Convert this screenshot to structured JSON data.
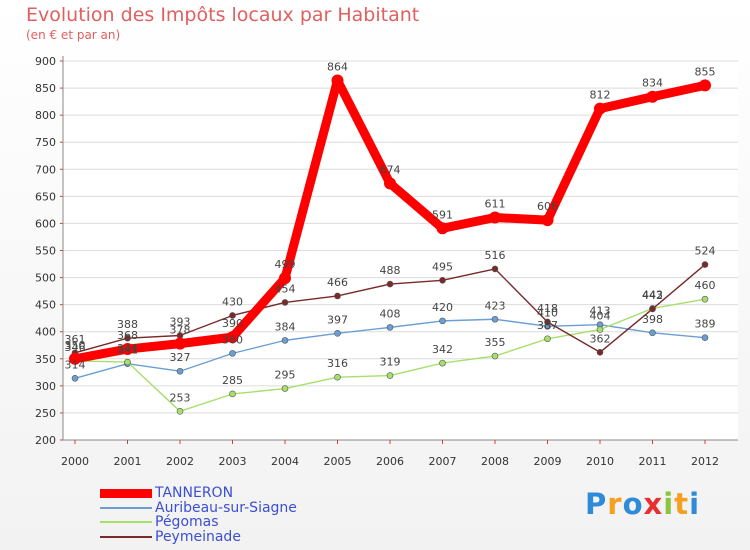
{
  "chart_data": {
    "type": "line",
    "title": "Evolution des Impôts locaux par Habitant",
    "subtitle": "(en € et par an)",
    "x": [
      "2000",
      "2001",
      "2002",
      "2003",
      "2004",
      "2005",
      "2006",
      "2007",
      "2008",
      "2009",
      "2010",
      "2011",
      "2012"
    ],
    "yticks": [
      "200",
      "250",
      "300",
      "350",
      "400",
      "450",
      "500",
      "550",
      "600",
      "650",
      "700",
      "750",
      "800",
      "850",
      "900"
    ],
    "ylim": [
      200,
      900
    ],
    "grid": "horizontal",
    "legend_position": "bottom-left",
    "series": [
      {
        "name": "TANNERON",
        "color": "#ff0000",
        "values": [
          350,
          368,
          378,
          390,
          499,
          864,
          674,
          591,
          611,
          606,
          812,
          834,
          855
        ],
        "labels": [
          "350",
          "368",
          "378",
          "390",
          "499",
          "864",
          "674",
          "591",
          "611",
          "606",
          "812",
          "834",
          "855"
        ]
      },
      {
        "name": "Auribeau-sur-Siagne",
        "color": "#6b9fd4",
        "values": [
          314,
          341,
          327,
          360,
          384,
          397,
          408,
          420,
          423,
          410,
          413,
          398,
          389
        ],
        "labels": [
          "314",
          "341",
          "327",
          "360",
          "384",
          "397",
          "408",
          "420",
          "423",
          "410",
          "413",
          "398",
          "389"
        ]
      },
      {
        "name": "Pégomas",
        "color": "#a6e06b",
        "values": [
          346,
          344,
          253,
          285,
          295,
          316,
          319,
          342,
          355,
          387,
          404,
          443,
          460
        ],
        "labels": [
          "346",
          "344",
          "253",
          "285",
          "295",
          "316",
          "319",
          "342",
          "355",
          "387",
          "404",
          "443",
          "460"
        ]
      },
      {
        "name": "Peymeinade",
        "color": "#7a2a2a",
        "values": [
          361,
          388,
          393,
          430,
          454,
          466,
          488,
          495,
          516,
          418,
          362,
          442,
          524
        ],
        "labels": [
          "361",
          "388",
          "393",
          "430",
          "454",
          "466",
          "488",
          "495",
          "516",
          "418",
          "362",
          "442",
          "524"
        ]
      }
    ]
  },
  "logo": {
    "text": "Proxiti",
    "letters": [
      "P",
      "r",
      "o",
      "x",
      "i",
      "t",
      "i"
    ],
    "colors": [
      "#2e8bd8",
      "#f5a020",
      "#2e8bd8",
      "#e83030",
      "#8bc540",
      "#f5a020",
      "#2e8bd8"
    ]
  }
}
